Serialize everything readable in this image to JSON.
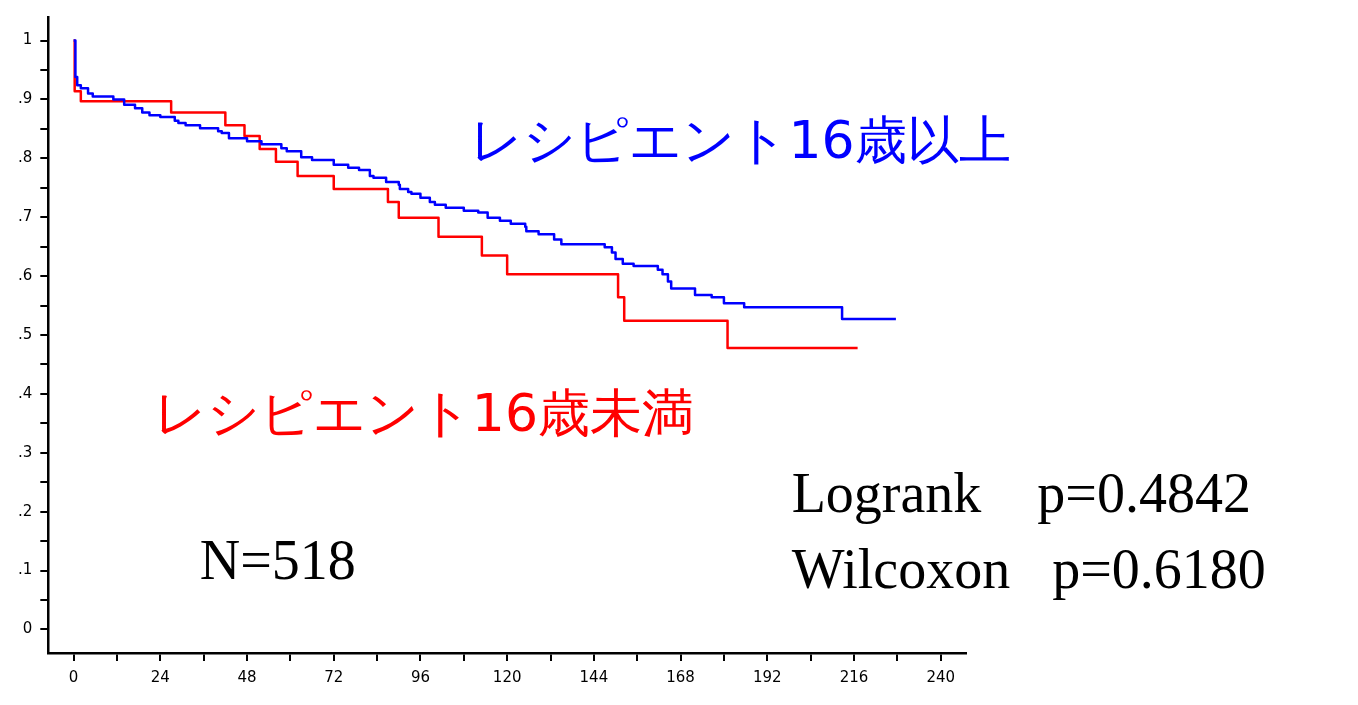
{
  "chart_data": {
    "type": "step",
    "xlim": [
      -7,
      247
    ],
    "ylim": [
      -0.04,
      1.04
    ],
    "xticks": [
      0,
      {
        "value": 12,
        "label": null
      },
      24,
      {
        "value": 36,
        "label": null
      },
      48,
      {
        "value": 60,
        "label": null
      },
      72,
      {
        "value": 84,
        "label": null
      },
      96,
      {
        "value": 108,
        "label": null
      },
      120,
      {
        "value": 132,
        "label": null
      },
      144,
      {
        "value": 156,
        "label": null
      },
      168,
      {
        "value": 180,
        "label": null
      },
      192,
      {
        "value": 204,
        "label": null
      },
      216,
      {
        "value": 228,
        "label": null
      },
      240
    ],
    "yticks": [
      0,
      {
        "value": 0.05,
        "label": null
      },
      {
        "value": 0.1,
        "label": ".1"
      },
      {
        "value": 0.15,
        "label": null
      },
      {
        "value": 0.2,
        "label": ".2"
      },
      {
        "value": 0.25,
        "label": null
      },
      {
        "value": 0.3,
        "label": ".3"
      },
      {
        "value": 0.35,
        "label": null
      },
      {
        "value": 0.4,
        "label": ".4"
      },
      {
        "value": 0.45,
        "label": null
      },
      {
        "value": 0.5,
        "label": ".5"
      },
      {
        "value": 0.55,
        "label": null
      },
      {
        "value": 0.6,
        "label": ".6"
      },
      {
        "value": 0.65,
        "label": null
      },
      {
        "value": 0.7,
        "label": ".7"
      },
      {
        "value": 0.75,
        "label": null
      },
      {
        "value": 0.8,
        "label": ".8"
      },
      {
        "value": 0.85,
        "label": null
      },
      {
        "value": 0.9,
        "label": ".9"
      },
      {
        "value": 0.95,
        "label": null
      },
      1
    ],
    "grid": false,
    "legend": false,
    "marker": "none",
    "series": [
      {
        "name": "レシピエント16歳以上",
        "color": "#0000ff",
        "x": [
          0,
          0.5,
          1,
          2,
          4,
          5.3,
          11,
          14,
          17,
          19,
          21,
          24,
          28,
          29,
          31,
          35,
          40,
          41,
          43,
          48,
          52,
          57.5,
          59,
          63,
          66,
          72,
          76,
          79,
          82,
          83,
          86.5,
          90,
          90.3,
          92.6,
          93.5,
          96,
          98.6,
          100,
          103,
          108,
          112,
          114.6,
          118,
          121,
          125,
          125.3,
          128.7,
          133,
          135,
          147,
          149,
          150,
          152,
          155,
          161.7,
          163,
          164.5,
          165.4,
          172,
          176.6,
          180,
          185.6,
          212.7,
          227.6
        ],
        "values": [
          1,
          0.938,
          0.924,
          0.919,
          0.91,
          0.905,
          0.9,
          0.891,
          0.885,
          0.878,
          0.873,
          0.87,
          0.864,
          0.86,
          0.856,
          0.851,
          0.846,
          0.843,
          0.834,
          0.829,
          0.824,
          0.817,
          0.812,
          0.802,
          0.797,
          0.789,
          0.784,
          0.78,
          0.77,
          0.767,
          0.76,
          0.755,
          0.748,
          0.743,
          0.74,
          0.733,
          0.726,
          0.721,
          0.716,
          0.711,
          0.708,
          0.699,
          0.694,
          0.689,
          0.684,
          0.676,
          0.671,
          0.662,
          0.654,
          0.649,
          0.64,
          0.629,
          0.621,
          0.617,
          0.611,
          0.603,
          0.591,
          0.579,
          0.568,
          0.564,
          0.554,
          0.547,
          0.527,
          0.527
        ]
      },
      {
        "name": "レシピエント16歳未満",
        "color": "#ff0000",
        "x": [
          0,
          0.3,
          2,
          27,
          42,
          47.3,
          51.5,
          56,
          62,
          72,
          87,
          90,
          101,
          113,
          120,
          150.7,
          152.4,
          181,
          217
        ],
        "values": [
          1,
          0.914,
          0.897,
          0.878,
          0.856,
          0.838,
          0.816,
          0.794,
          0.77,
          0.748,
          0.726,
          0.699,
          0.667,
          0.635,
          0.603,
          0.564,
          0.524,
          0.478,
          0.478
        ]
      }
    ],
    "annotations": [
      "N=518",
      "Logrank    p=0.4842",
      "Wilcoxon   p=0.6180"
    ]
  }
}
